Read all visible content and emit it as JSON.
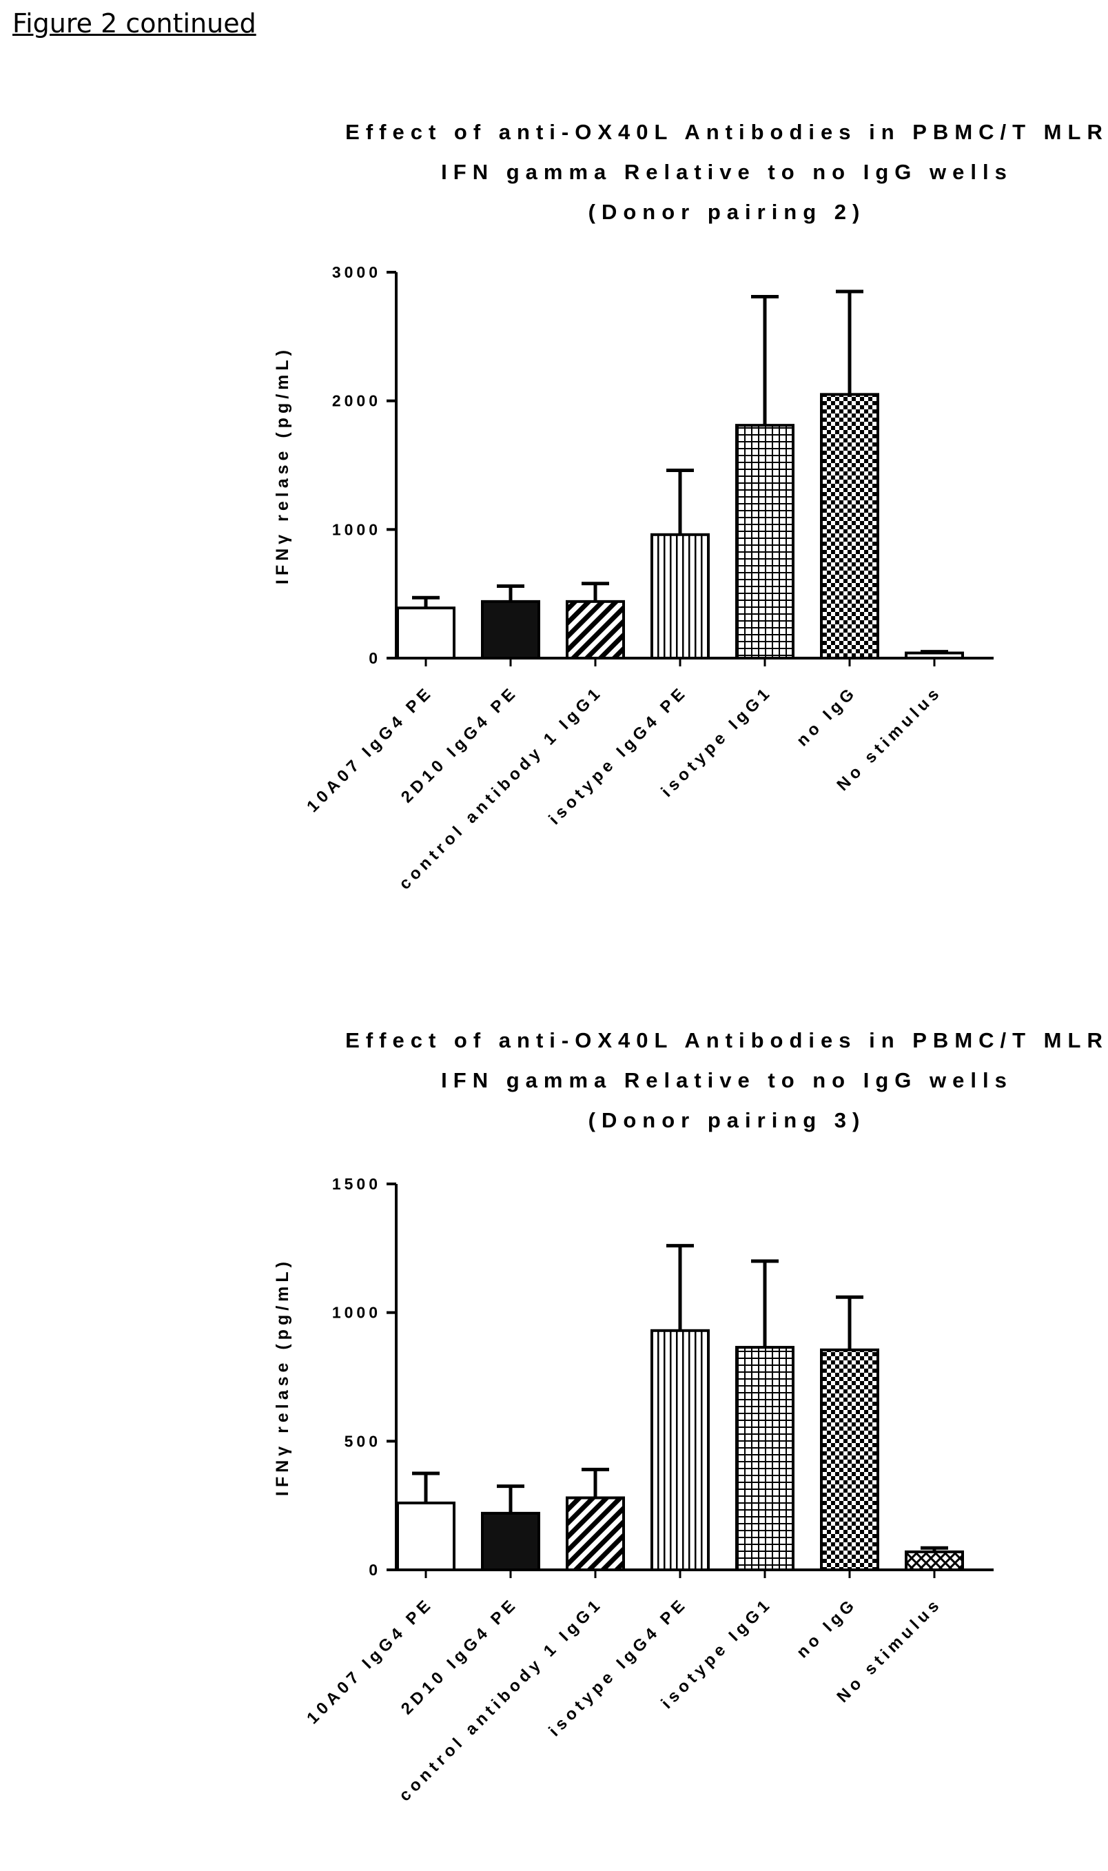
{
  "figure_label": "Figure 2 continued",
  "chart_data": [
    {
      "type": "bar",
      "title_lines": [
        "Effect of anti-OX40L Antibodies in PBMC/T MLR",
        "IFN gamma Relative to no IgG wells",
        "(Donor pairing 2)"
      ],
      "ylabel": "IFNγ relase (pg/mL)",
      "xlabel": "",
      "ylim": [
        0,
        3000
      ],
      "yticks": [
        "0",
        "1000",
        "2000",
        "3000"
      ],
      "categories": [
        "10A07 IgG4 PE",
        "2D10 IgG4 PE",
        "control antibody 1 IgG1",
        "isotype IgG4 PE",
        "isotype IgG1",
        "no IgG",
        "No stimulus"
      ],
      "values": [
        390,
        440,
        440,
        960,
        1810,
        2050,
        40
      ],
      "error_upper": [
        470,
        560,
        580,
        1460,
        2810,
        2850,
        50
      ],
      "patterns": [
        "open",
        "solid",
        "diagonal",
        "vertical",
        "grid",
        "checker",
        "none"
      ],
      "grid": false
    },
    {
      "type": "bar",
      "title_lines": [
        "Effect of anti-OX40L Antibodies in PBMC/T MLR",
        "IFN gamma Relative to no IgG wells",
        "(Donor pairing 3)"
      ],
      "ylabel": "IFNγ relase (pg/mL)",
      "xlabel": "",
      "ylim": [
        0,
        1500
      ],
      "yticks": [
        "0",
        "500",
        "1000",
        "1500"
      ],
      "categories": [
        "10A07 IgG4 PE",
        "2D10 IgG4 PE",
        "control antibody 1 IgG1",
        "isotype IgG4 PE",
        "isotype IgG1",
        "no IgG",
        "No stimulus"
      ],
      "values": [
        260,
        220,
        280,
        930,
        865,
        855,
        70
      ],
      "error_upper": [
        375,
        325,
        390,
        1260,
        1200,
        1060,
        85
      ],
      "patterns": [
        "open",
        "solid",
        "diagonal",
        "vertical",
        "grid",
        "checker",
        "crosshatch"
      ],
      "grid": false
    }
  ]
}
